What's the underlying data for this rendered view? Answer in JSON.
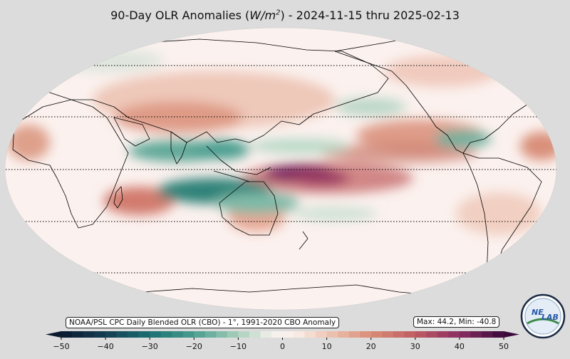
{
  "title_prefix": "90-Day OLR Anomalies (",
  "title_unit_base": "W/m",
  "title_unit_exp": "2",
  "title_suffix": ") - 2024-11-15 thru 2025-02-13",
  "source_note": "NOAA/PSL CPC Daily Blended OLR (CBO) - 1°, 1991-2020 CBO Anomaly",
  "stats": "Max: 44.2,  Min: -40.8",
  "logo_text": {
    "line1": "NE",
    "line2": "LAB"
  },
  "colorbar": {
    "ticks": [
      "−50",
      "−40",
      "−30",
      "−20",
      "−10",
      "0",
      "10",
      "20",
      "30",
      "40",
      "50"
    ],
    "min": -50,
    "max": 50,
    "step": 2.5,
    "stops": [
      [
        -50,
        "#0b1a2e"
      ],
      [
        -40,
        "#143d52"
      ],
      [
        -30,
        "#1b6f72"
      ],
      [
        -20,
        "#4a9e8f"
      ],
      [
        -10,
        "#a9cfbb"
      ],
      [
        -2.5,
        "#f4f1ec"
      ],
      [
        2.5,
        "#faf0ec"
      ],
      [
        10,
        "#efc7b6"
      ],
      [
        20,
        "#d98d77"
      ],
      [
        30,
        "#bf5c62"
      ],
      [
        40,
        "#8a2e62"
      ],
      [
        50,
        "#3a0a3a"
      ]
    ]
  },
  "colors": {
    "background": "#dcdcdc",
    "ocean_neutral": "#fbf1ee",
    "coastline": "#000000"
  }
}
